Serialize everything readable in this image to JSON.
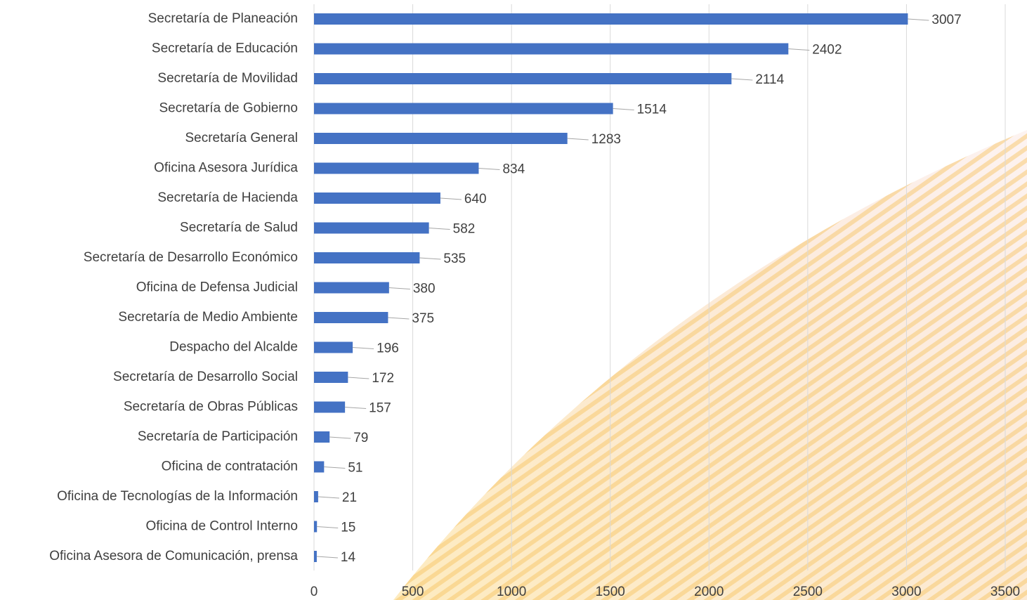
{
  "chart_data": {
    "type": "bar",
    "orientation": "horizontal",
    "categories": [
      "Secretaría de Planeación",
      "Secretaría de Educación",
      "Secretaría de Movilidad",
      "Secretaría de Gobierno",
      "Secretaría General",
      "Oficina Asesora Jurídica",
      "Secretaría de Hacienda",
      "Secretaría de Salud",
      "Secretaría de Desarrollo Económico",
      "Oficina de Defensa Judicial",
      "Secretaría de Medio Ambiente",
      "Despacho del Alcalde",
      "Secretaría de Desarrollo Social",
      "Secretaría de Obras Públicas",
      "Secretaría de Participación",
      "Oficina de contratación",
      "Oficina de Tecnologías de la Información",
      "Oficina de Control Interno",
      "Oficina Asesora de Comunicación, prensa"
    ],
    "values": [
      3007,
      2402,
      2114,
      1514,
      1283,
      834,
      640,
      582,
      535,
      380,
      375,
      196,
      172,
      157,
      79,
      51,
      21,
      15,
      14
    ],
    "color": "#4472c4",
    "xlim": [
      0,
      3500
    ],
    "xticks": [
      0,
      500,
      1000,
      1500,
      2000,
      2500,
      3000,
      3500
    ],
    "grid": true
  }
}
